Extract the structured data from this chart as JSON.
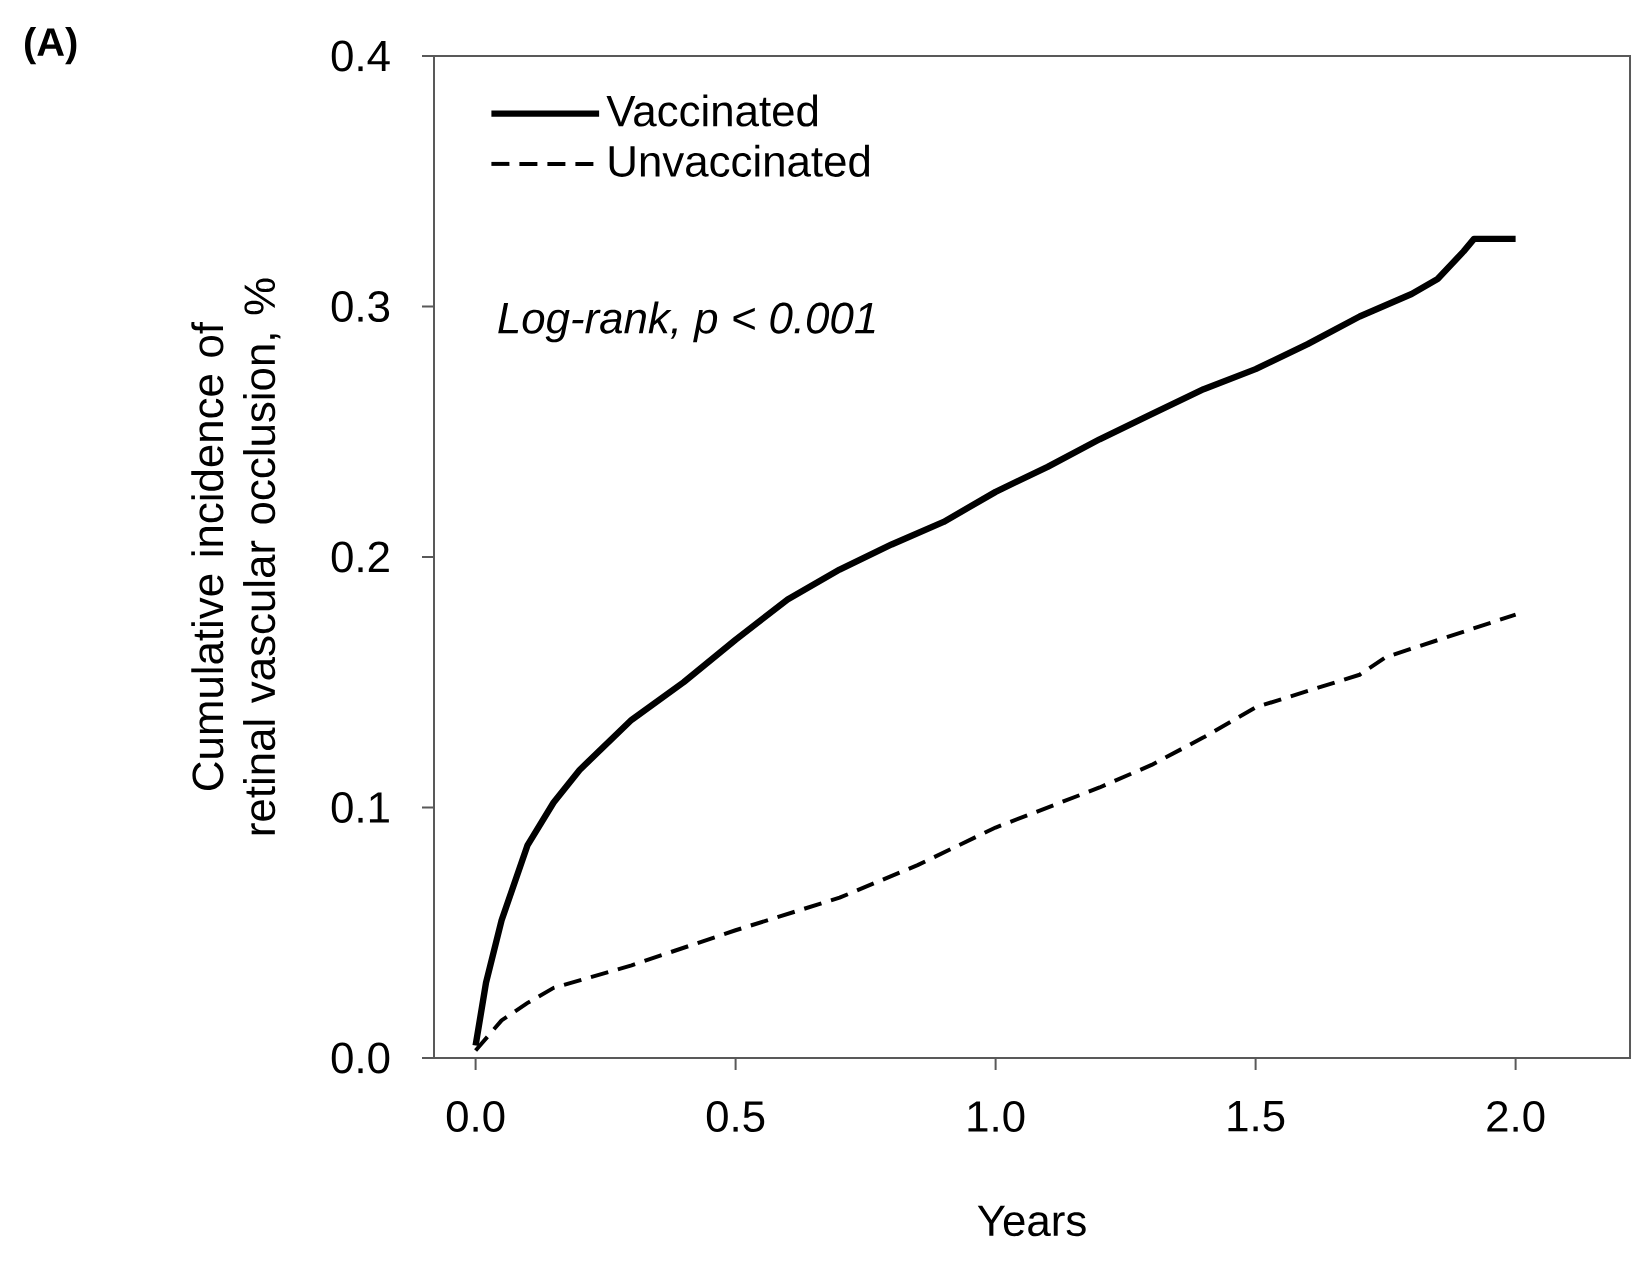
{
  "chart_data": {
    "type": "line",
    "xlabel": "Years",
    "ylabel": "Cumulative incidence of retinal vascular occlusion, %",
    "annotations": [
      "(A)",
      "Log-rank, p < 0.001"
    ],
    "xlim": [
      -0.08,
      2.22
    ],
    "ylim": [
      0,
      0.4
    ],
    "xticks": [
      {
        "value": 0,
        "label": "0.0"
      },
      {
        "value": 0.5,
        "label": "0.5"
      },
      {
        "value": 1,
        "label": "1.0"
      },
      {
        "value": 1.5,
        "label": "1.5"
      },
      {
        "value": 2,
        "label": "2.0"
      }
    ],
    "yticks": [
      {
        "value": 0,
        "label": "0.0"
      },
      {
        "value": 0.1,
        "label": "0.1"
      },
      {
        "value": 0.2,
        "label": "0.2"
      },
      {
        "value": 0.3,
        "label": "0.3"
      },
      {
        "value": 0.4,
        "label": "0.4"
      }
    ],
    "legend": "top left",
    "grid": false,
    "marker": "none",
    "series": [
      {
        "name": "Vaccinated",
        "color": "#000000",
        "line_style": "solid",
        "x": [
          0,
          0.02,
          0.05,
          0.1,
          0.15,
          0.2,
          0.3,
          0.4,
          0.5,
          0.6,
          0.7,
          0.8,
          0.9,
          1.0,
          1.1,
          1.2,
          1.3,
          1.4,
          1.5,
          1.6,
          1.7,
          1.8,
          1.85,
          1.9,
          1.92,
          2.0
        ],
        "values": [
          0.005,
          0.03,
          0.055,
          0.085,
          0.102,
          0.115,
          0.135,
          0.15,
          0.167,
          0.183,
          0.195,
          0.205,
          0.214,
          0.226,
          0.236,
          0.247,
          0.257,
          0.267,
          0.275,
          0.285,
          0.296,
          0.305,
          0.311,
          0.322,
          0.327,
          0.327
        ]
      },
      {
        "name": "Unvaccinated",
        "color": "#000000",
        "line_style": "dashed",
        "x": [
          0,
          0.05,
          0.1,
          0.15,
          0.3,
          0.5,
          0.7,
          0.85,
          1.0,
          1.2,
          1.3,
          1.4,
          1.5,
          1.7,
          1.75,
          2.0
        ],
        "values": [
          0.003,
          0.015,
          0.022,
          0.028,
          0.037,
          0.051,
          0.064,
          0.077,
          0.092,
          0.108,
          0.117,
          0.128,
          0.14,
          0.153,
          0.16,
          0.177
        ]
      }
    ]
  }
}
